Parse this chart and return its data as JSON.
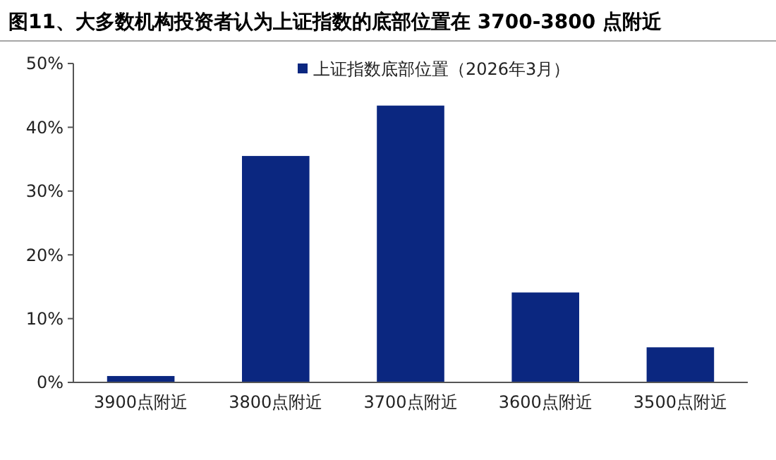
{
  "chart_data": {
    "type": "bar",
    "title": "图11、大多数机构投资者认为上证指数的底部位置在 3700-3800 点附近",
    "categories": [
      "3900点附近",
      "3800点附近",
      "3700点附近",
      "3600点附近",
      "3500点附近"
    ],
    "series": [
      {
        "name": "上证指数底部位置（2026年3月）",
        "color": "#0b2780",
        "values": [
          1,
          35.5,
          43.4,
          14.1,
          5.5
        ]
      }
    ],
    "ylim": [
      0,
      50
    ],
    "yticks": [
      {
        "value": 0,
        "label": "0%"
      },
      {
        "value": 10,
        "label": "10%"
      },
      {
        "value": 20,
        "label": "20%"
      },
      {
        "value": 30,
        "label": "30%"
      },
      {
        "value": 40,
        "label": "40%"
      },
      {
        "value": 50,
        "label": "50%"
      }
    ],
    "legend": "top"
  }
}
